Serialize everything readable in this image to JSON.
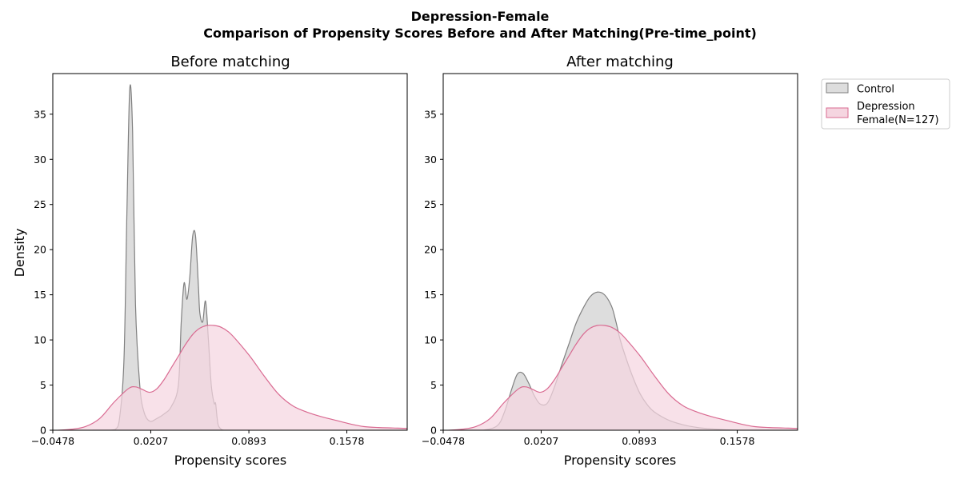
{
  "figure": {
    "title_line1": "Depression-Female",
    "title_line2": "Comparison of Propensity Scores Before and After Matching(Pre-time_point)"
  },
  "legend": {
    "items": [
      "Control",
      "Depression",
      "Female(N=127)"
    ]
  },
  "colors": {
    "control_fill": "#dddddd",
    "control_line": "#808080",
    "treated_fill": "#f5d5e0",
    "treated_line": "#d96a91"
  },
  "chart_data": [
    {
      "type": "area",
      "title": "Before matching",
      "xlabel": "Propensity scores",
      "ylabel": "Density",
      "xlim": [
        -0.0478,
        0.2
      ],
      "ylim": [
        0,
        39.5
      ],
      "xticks": [
        -0.0478,
        0.0207,
        0.0893,
        0.1578
      ],
      "xtick_labels": [
        "−0.0478",
        "0.0207",
        "0.0893",
        "0.1578"
      ],
      "yticks": [
        0,
        5,
        10,
        15,
        20,
        25,
        30,
        35
      ],
      "series": [
        {
          "name": "Control",
          "x": [
            -0.02,
            -0.01,
            -0.004,
            -0.001,
            0.002,
            0.004,
            0.006,
            0.008,
            0.01,
            0.013,
            0.016,
            0.02,
            0.025,
            0.03,
            0.035,
            0.04,
            0.042,
            0.044,
            0.046,
            0.048,
            0.05,
            0.052,
            0.054,
            0.055,
            0.057,
            0.059,
            0.061,
            0.063,
            0.065,
            0.066,
            0.067,
            0.068,
            0.07,
            0.072,
            0.074,
            0.077,
            0.08,
            0.09
          ],
          "y": [
            0,
            0,
            0.1,
            1.5,
            8,
            24,
            37.8,
            33,
            14,
            5,
            2,
            1,
            1.3,
            1.8,
            2.6,
            5,
            12,
            16.3,
            14.5,
            17,
            21.5,
            21.5,
            16,
            13,
            12,
            14.3,
            10,
            5,
            3,
            3,
            1.5,
            0.5,
            0.1,
            0,
            0,
            0,
            0,
            0
          ]
        },
        {
          "name": "Depression Female(N=127)",
          "x": [
            -0.044,
            -0.035,
            -0.025,
            -0.015,
            -0.005,
            0.005,
            0.01,
            0.015,
            0.02,
            0.025,
            0.03,
            0.035,
            0.04,
            0.045,
            0.05,
            0.055,
            0.06,
            0.065,
            0.07,
            0.075,
            0.08,
            0.09,
            0.1,
            0.11,
            0.12,
            0.13,
            0.14,
            0.15,
            0.16,
            0.17,
            0.18,
            0.19,
            0.2,
            0.21,
            0.222
          ],
          "y": [
            0,
            0.1,
            0.4,
            1.3,
            3.1,
            4.6,
            4.8,
            4.5,
            4.2,
            4.6,
            5.6,
            6.9,
            8.2,
            9.5,
            10.6,
            11.3,
            11.6,
            11.6,
            11.4,
            10.9,
            10.1,
            8.2,
            6.0,
            4.0,
            2.7,
            2.0,
            1.5,
            1.1,
            0.7,
            0.4,
            0.3,
            0.25,
            0.2,
            0.1,
            0
          ]
        }
      ]
    },
    {
      "type": "area",
      "title": "After matching",
      "xlabel": "Propensity scores",
      "ylabel": "",
      "xlim": [
        -0.0478,
        0.2
      ],
      "ylim": [
        0,
        39.5
      ],
      "xticks": [
        -0.0478,
        0.0207,
        0.0893,
        0.1578
      ],
      "xtick_labels": [
        "−0.0478",
        "0.0207",
        "0.0893",
        "0.1578"
      ],
      "yticks": [
        0,
        5,
        10,
        15,
        20,
        25,
        30,
        35
      ],
      "series": [
        {
          "name": "Control",
          "x": [
            -0.03,
            -0.02,
            -0.01,
            -0.005,
            0.0,
            0.004,
            0.008,
            0.012,
            0.016,
            0.02,
            0.025,
            0.03,
            0.035,
            0.04,
            0.045,
            0.05,
            0.055,
            0.06,
            0.065,
            0.07,
            0.073,
            0.076,
            0.08,
            0.085,
            0.09,
            0.095,
            0.1,
            0.11,
            0.12,
            0.13,
            0.14,
            0.15,
            0.16,
            0.17,
            0.18
          ],
          "y": [
            0,
            0,
            0.5,
            2.0,
            4.5,
            6.2,
            6.3,
            5.2,
            3.8,
            2.9,
            3.0,
            4.8,
            7.2,
            9.5,
            11.8,
            13.5,
            14.8,
            15.3,
            15.0,
            13.7,
            12.0,
            10.0,
            8.0,
            5.8,
            4.0,
            2.8,
            2.0,
            1.1,
            0.6,
            0.3,
            0.15,
            0.05,
            0,
            0,
            0
          ]
        },
        {
          "name": "Depression Female(N=127)",
          "x": [
            -0.044,
            -0.035,
            -0.025,
            -0.015,
            -0.005,
            0.005,
            0.01,
            0.015,
            0.02,
            0.025,
            0.03,
            0.035,
            0.04,
            0.045,
            0.05,
            0.055,
            0.06,
            0.065,
            0.07,
            0.075,
            0.08,
            0.09,
            0.1,
            0.11,
            0.12,
            0.13,
            0.14,
            0.15,
            0.16,
            0.17,
            0.18,
            0.19,
            0.2,
            0.21,
            0.222
          ],
          "y": [
            0,
            0.1,
            0.4,
            1.3,
            3.1,
            4.6,
            4.8,
            4.5,
            4.2,
            4.6,
            5.6,
            6.9,
            8.2,
            9.5,
            10.6,
            11.3,
            11.6,
            11.6,
            11.4,
            10.9,
            10.1,
            8.2,
            6.0,
            4.0,
            2.7,
            2.0,
            1.5,
            1.1,
            0.7,
            0.4,
            0.3,
            0.25,
            0.2,
            0.1,
            0
          ]
        }
      ]
    }
  ]
}
